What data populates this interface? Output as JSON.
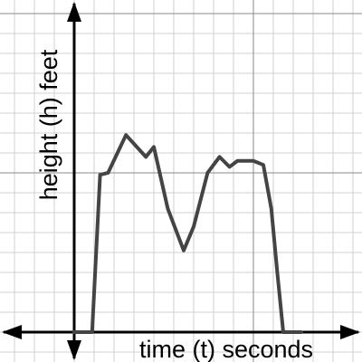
{
  "chart_data": {
    "type": "line",
    "xlabel": "time (t) seconds",
    "ylabel": "height (h) feet",
    "x": [
      0,
      0.9,
      1.3,
      1.7,
      2.6,
      3.6,
      4.0,
      4.7,
      5.5,
      6.0,
      6.7,
      7.3,
      7.8,
      8.2,
      9.0,
      9.5,
      9.9,
      10.2,
      10.5,
      11.4
    ],
    "series": [
      {
        "color": "#444444",
        "values": [
          0,
          0,
          7.9,
          8.0,
          9.9,
          8.8,
          9.3,
          6.2,
          4.1,
          5.3,
          8.0,
          8.8,
          8.3,
          8.6,
          8.6,
          8.4,
          6.2,
          3.0,
          0,
          0
        ]
      }
    ],
    "xlim": [
      -3.727,
      14.455
    ],
    "ylim": [
      -1.5,
      16.68
    ],
    "grid": true,
    "major_grid_x": [
      9
    ],
    "major_grid_y": [
      8,
      16
    ]
  }
}
